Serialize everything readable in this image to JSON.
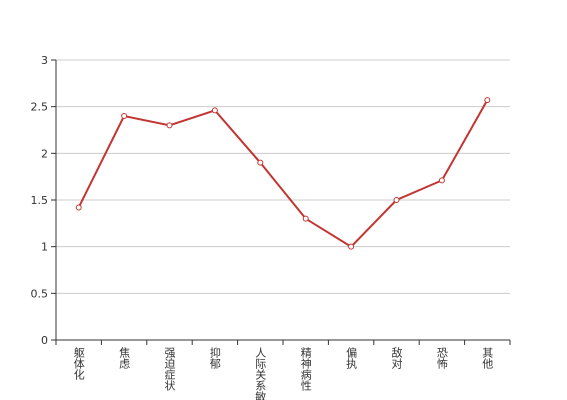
{
  "chart_data": {
    "type": "line",
    "categories": [
      "躯体化",
      "焦虑",
      "强迫症状",
      "抑郁",
      "人际关系敏感",
      "精神病性",
      "偏执",
      "敌对",
      "恐怖",
      "其他"
    ],
    "values": [
      1.42,
      2.4,
      2.3,
      2.46,
      1.9,
      1.3,
      1.0,
      1.5,
      1.71,
      2.57
    ],
    "color": "#c23531",
    "ylim": [
      0,
      3
    ],
    "yticks": [
      0,
      0.5,
      1,
      1.5,
      2,
      2.5,
      3
    ],
    "grid": true
  }
}
